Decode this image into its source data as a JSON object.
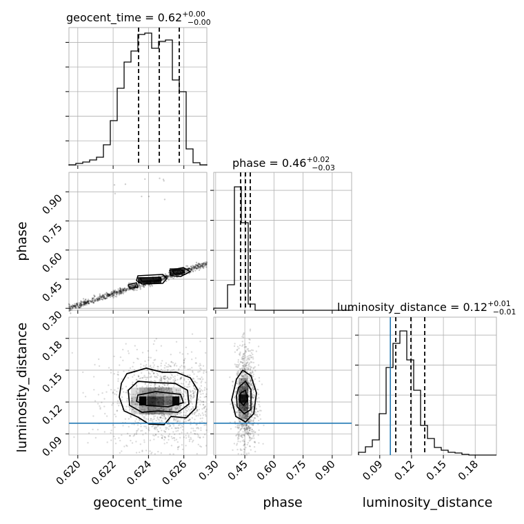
{
  "chart_data": {
    "type": "corner",
    "parameters": [
      "geocent_time",
      "phase",
      "luminosity_distance"
    ],
    "titles": [
      {
        "text": "geocent_time = 0.62",
        "sup": "+0.00",
        "sub": "−0.00"
      },
      {
        "text": "phase = 0.46",
        "sup": "+0.02",
        "sub": "−0.03"
      },
      {
        "text": "luminosity_distance = 0.12",
        "sup": "+0.01",
        "sub": "−0.01"
      }
    ],
    "xlabels": [
      "geocent_time",
      "phase",
      "luminosity_distance"
    ],
    "ylabels": [
      "phase",
      "luminosity_distance"
    ],
    "ranges": {
      "geocent_time": [
        0.6195,
        0.6273
      ],
      "phase": [
        0.29,
        1.0
      ],
      "luminosity_distance": [
        0.07,
        0.2
      ]
    },
    "ticks": {
      "geocent_time": [
        "0.620",
        "0.622",
        "0.624",
        "0.626"
      ],
      "phase": [
        "0.30",
        "0.45",
        "0.60",
        "0.75",
        "0.90"
      ],
      "luminosity_distance": [
        "0.09",
        "0.12",
        "0.15",
        "0.18"
      ]
    },
    "injection": {
      "luminosity_distance": 0.1
    }
  },
  "axes": {
    "ax00": {
      "xlabel": "",
      "ylabel": ""
    },
    "ax11": {
      "xlabel": "",
      "ylabel": ""
    }
  }
}
